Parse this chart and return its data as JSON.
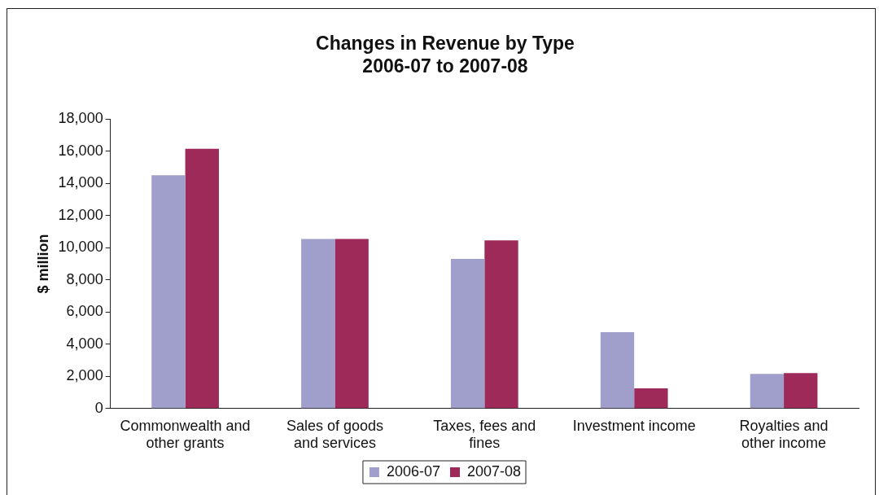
{
  "chart_data": {
    "type": "bar",
    "title": "Changes in Revenue by Type\n2006-07 to 2007-08",
    "ylabel": "$ million",
    "categories": [
      "Commonwealth and other grants",
      "Sales of goods and services",
      "Taxes, fees and fines",
      "Investment income",
      "Royalties and other income"
    ],
    "series": [
      {
        "name": "2006-07",
        "color": "#a09fcb",
        "values": [
          14500,
          10550,
          9300,
          4750,
          2150
        ]
      },
      {
        "name": "2007-08",
        "color": "#9d2a58",
        "values": [
          16150,
          10550,
          10450,
          1250,
          2200
        ]
      }
    ],
    "ylim": [
      0,
      18000
    ],
    "yticks": [
      0,
      {
        "value": 2000,
        "label": "2,000"
      },
      {
        "value": 4000,
        "label": "4,000"
      },
      {
        "value": 6000,
        "label": "6,000"
      },
      {
        "value": 8000,
        "label": "8,000"
      },
      {
        "value": 10000,
        "label": "10,000"
      },
      {
        "value": 12000,
        "label": "12,000"
      },
      {
        "value": 14000,
        "label": "14,000"
      },
      {
        "value": 16000,
        "label": "16,000"
      },
      {
        "value": 18000,
        "label": "18,000"
      }
    ],
    "grid": false,
    "legend": "bottom"
  }
}
